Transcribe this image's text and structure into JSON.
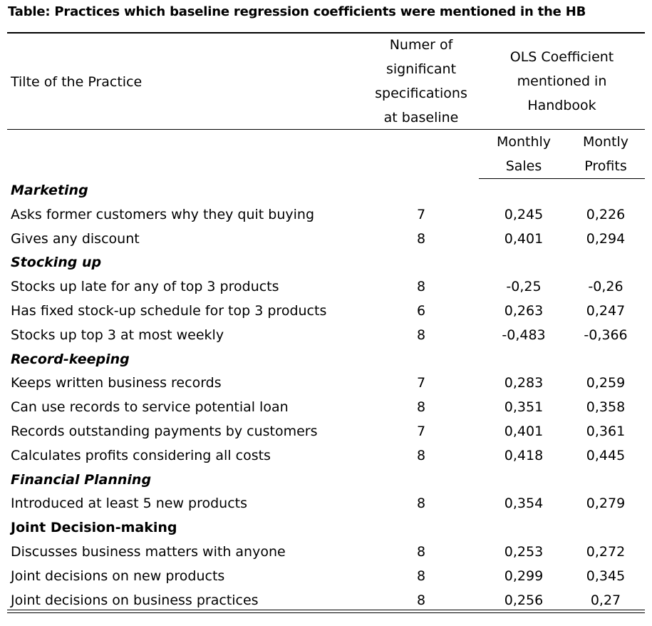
{
  "title": "Table: Practices which baseline regression coefficients were mentioned in the HB",
  "header": {
    "col_practice": "Tilte of the Practice",
    "col_number_lines": [
      "Numer of",
      "significant",
      "specifications",
      "at baseline"
    ],
    "col_ols_lines": [
      "OLS Coefficient",
      "mentioned in",
      "Handbook"
    ],
    "sub_sales_lines": [
      "Monthly",
      "Sales"
    ],
    "sub_profits_lines": [
      "Montly",
      "Profits"
    ]
  },
  "rows": [
    {
      "type": "section",
      "label": "Marketing",
      "italic": true
    },
    {
      "type": "data",
      "label": "Asks former customers why they quit buying",
      "num": "7",
      "sales": "0,245",
      "profits": "0,226"
    },
    {
      "type": "data",
      "label": "Gives any discount",
      "num": "8",
      "sales": "0,401",
      "profits": "0,294"
    },
    {
      "type": "section",
      "label": "Stocking up",
      "italic": true
    },
    {
      "type": "data",
      "label": "Stocks up late for any of top 3 products",
      "num": "8",
      "sales": "-0,25",
      "profits": "-0,26"
    },
    {
      "type": "data",
      "label": "Has fixed stock-up schedule for top 3 products",
      "num": "6",
      "sales": "0,263",
      "profits": "0,247"
    },
    {
      "type": "data",
      "label": "Stocks up top 3 at most weekly",
      "num": "8",
      "sales": "-0,483",
      "profits": "-0,366"
    },
    {
      "type": "section",
      "label": "Record-keeping",
      "italic": true
    },
    {
      "type": "data",
      "label": "Keeps written business records",
      "num": "7",
      "sales": "0,283",
      "profits": "0,259"
    },
    {
      "type": "data",
      "label": "Can use records to service potential loan",
      "num": "8",
      "sales": "0,351",
      "profits": "0,358"
    },
    {
      "type": "data",
      "label": "Records outstanding payments by customers",
      "num": "7",
      "sales": "0,401",
      "profits": "0,361"
    },
    {
      "type": "data",
      "label": "Calculates profits considering all costs",
      "num": "8",
      "sales": "0,418",
      "profits": "0,445"
    },
    {
      "type": "section",
      "label": "Financial Planning",
      "italic": true
    },
    {
      "type": "data",
      "label": "Introduced at least 5 new products",
      "num": "8",
      "sales": "0,354",
      "profits": "0,279"
    },
    {
      "type": "section",
      "label": "Joint Decision-making",
      "italic": false
    },
    {
      "type": "data",
      "label": "Discusses business matters with anyone",
      "num": "8",
      "sales": "0,253",
      "profits": "0,272"
    },
    {
      "type": "data",
      "label": "Joint decisions on new products",
      "num": "8",
      "sales": "0,299",
      "profits": "0,345"
    },
    {
      "type": "data",
      "label": "Joint decisions on business practices",
      "num": "8",
      "sales": "0,256",
      "profits": "0,27"
    }
  ]
}
